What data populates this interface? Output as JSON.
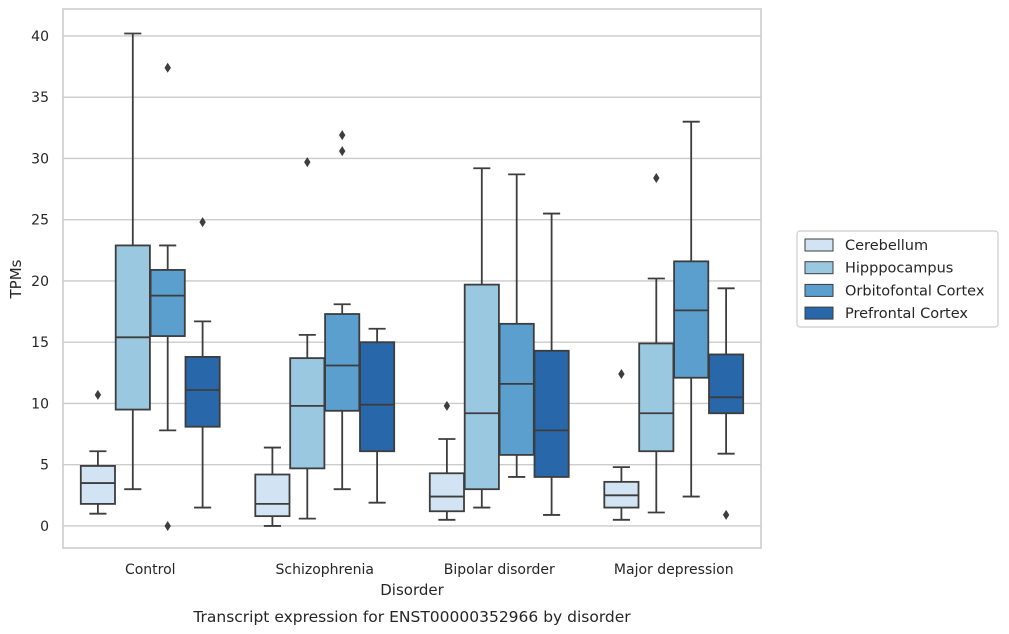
{
  "chart_data": {
    "type": "box",
    "caption": "Transcript expression for ENST00000352966 by disorder",
    "xlabel": "Disorder",
    "ylabel": "TPMs",
    "ylim": [
      -1.8,
      42.2
    ],
    "yticks": [
      0,
      5,
      10,
      15,
      20,
      25,
      30,
      35,
      40
    ],
    "grid": "horizontal",
    "legend_position": "right",
    "categories": [
      "Control",
      "Schizophrenia",
      "Bipolar disorder",
      "Major depression"
    ],
    "series": [
      {
        "name": "Cerebellum",
        "color": "#d2e3f3",
        "boxes": [
          {
            "whisker_low": 1.0,
            "q1": 1.8,
            "median": 3.5,
            "q3": 4.9,
            "whisker_high": 6.1,
            "outliers": [
              10.7
            ]
          },
          {
            "whisker_low": 0.0,
            "q1": 0.8,
            "median": 1.8,
            "q3": 4.2,
            "whisker_high": 6.4,
            "outliers": []
          },
          {
            "whisker_low": 0.5,
            "q1": 1.2,
            "median": 2.4,
            "q3": 4.3,
            "whisker_high": 7.1,
            "outliers": [
              9.8
            ]
          },
          {
            "whisker_low": 0.5,
            "q1": 1.5,
            "median": 2.5,
            "q3": 3.6,
            "whisker_high": 4.8,
            "outliers": [
              12.4
            ]
          }
        ]
      },
      {
        "name": "Hipppocampus",
        "color": "#9ac8e0",
        "boxes": [
          {
            "whisker_low": 3.0,
            "q1": 9.5,
            "median": 15.4,
            "q3": 22.9,
            "whisker_high": 40.2,
            "outliers": []
          },
          {
            "whisker_low": 0.6,
            "q1": 4.7,
            "median": 9.8,
            "q3": 13.7,
            "whisker_high": 15.6,
            "outliers": [
              29.7
            ]
          },
          {
            "whisker_low": 1.5,
            "q1": 3.0,
            "median": 9.2,
            "q3": 19.7,
            "whisker_high": 29.2,
            "outliers": []
          },
          {
            "whisker_low": 1.1,
            "q1": 6.1,
            "median": 9.2,
            "q3": 14.9,
            "whisker_high": 20.2,
            "outliers": [
              28.4
            ]
          }
        ]
      },
      {
        "name": "Orbitofontal Cortex",
        "color": "#5a9fcd",
        "boxes": [
          {
            "whisker_low": 7.8,
            "q1": 15.5,
            "median": 18.8,
            "q3": 20.9,
            "whisker_high": 22.9,
            "outliers": [
              37.4,
              0.0
            ]
          },
          {
            "whisker_low": 3.0,
            "q1": 9.4,
            "median": 13.1,
            "q3": 17.3,
            "whisker_high": 18.1,
            "outliers": [
              31.9,
              30.6
            ]
          },
          {
            "whisker_low": 4.0,
            "q1": 5.8,
            "median": 11.6,
            "q3": 16.5,
            "whisker_high": 28.7,
            "outliers": []
          },
          {
            "whisker_low": 2.4,
            "q1": 12.1,
            "median": 17.6,
            "q3": 21.6,
            "whisker_high": 33.0,
            "outliers": []
          }
        ]
      },
      {
        "name": "Prefrontal Cortex",
        "color": "#2867a9",
        "boxes": [
          {
            "whisker_low": 1.5,
            "q1": 8.1,
            "median": 11.1,
            "q3": 13.8,
            "whisker_high": 16.7,
            "outliers": [
              24.8
            ]
          },
          {
            "whisker_low": 1.9,
            "q1": 6.1,
            "median": 9.9,
            "q3": 15.0,
            "whisker_high": 16.1,
            "outliers": []
          },
          {
            "whisker_low": 0.9,
            "q1": 4.0,
            "median": 7.8,
            "q3": 14.3,
            "whisker_high": 25.5,
            "outliers": []
          },
          {
            "whisker_low": 5.9,
            "q1": 9.2,
            "median": 10.5,
            "q3": 14.0,
            "whisker_high": 19.4,
            "outliers": [
              0.9
            ]
          }
        ]
      }
    ]
  }
}
